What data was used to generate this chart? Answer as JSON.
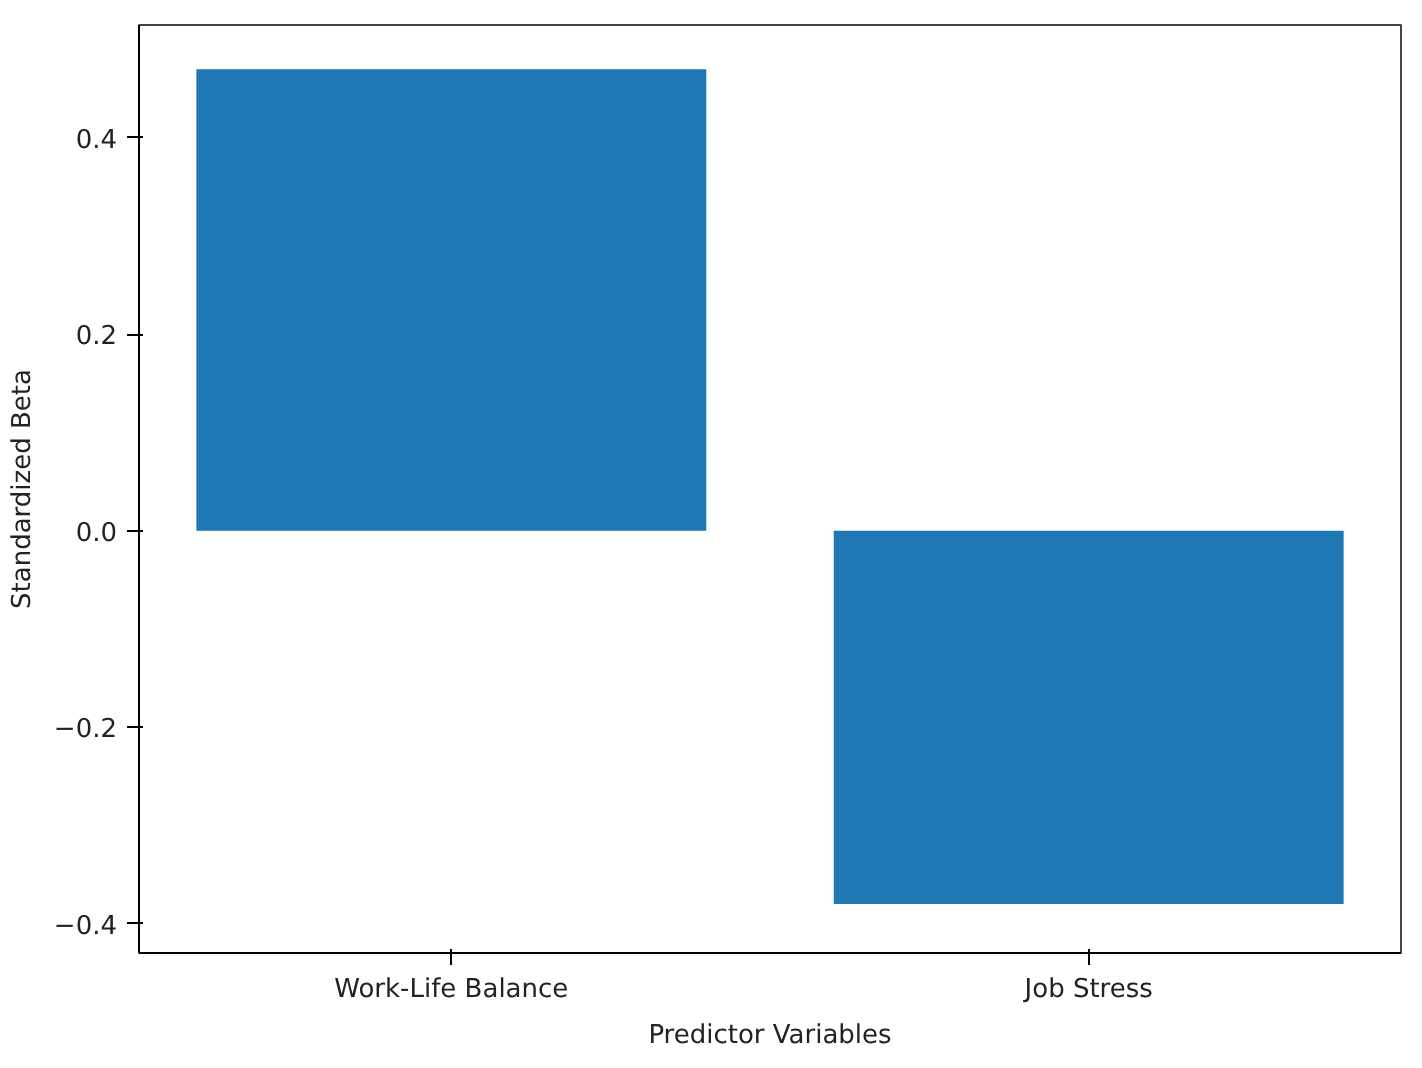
{
  "chart_data": {
    "type": "bar",
    "xlabel": "Predictor Variables",
    "ylabel": "Standardized Beta",
    "categories": [
      "Work-Life Balance",
      "Job Stress"
    ],
    "values": [
      0.47,
      -0.38
    ],
    "color": "#1f77b4",
    "ylim": [
      -0.43,
      0.515
    ],
    "yticks": [
      {
        "value": -0.4,
        "label": "−0.4"
      },
      {
        "value": -0.2,
        "label": "−0.2"
      },
      {
        "value": 0.0,
        "label": "0.0"
      },
      {
        "value": 0.2,
        "label": "0.2"
      },
      {
        "value": 0.4,
        "label": "0.4"
      }
    ],
    "grid": false
  }
}
